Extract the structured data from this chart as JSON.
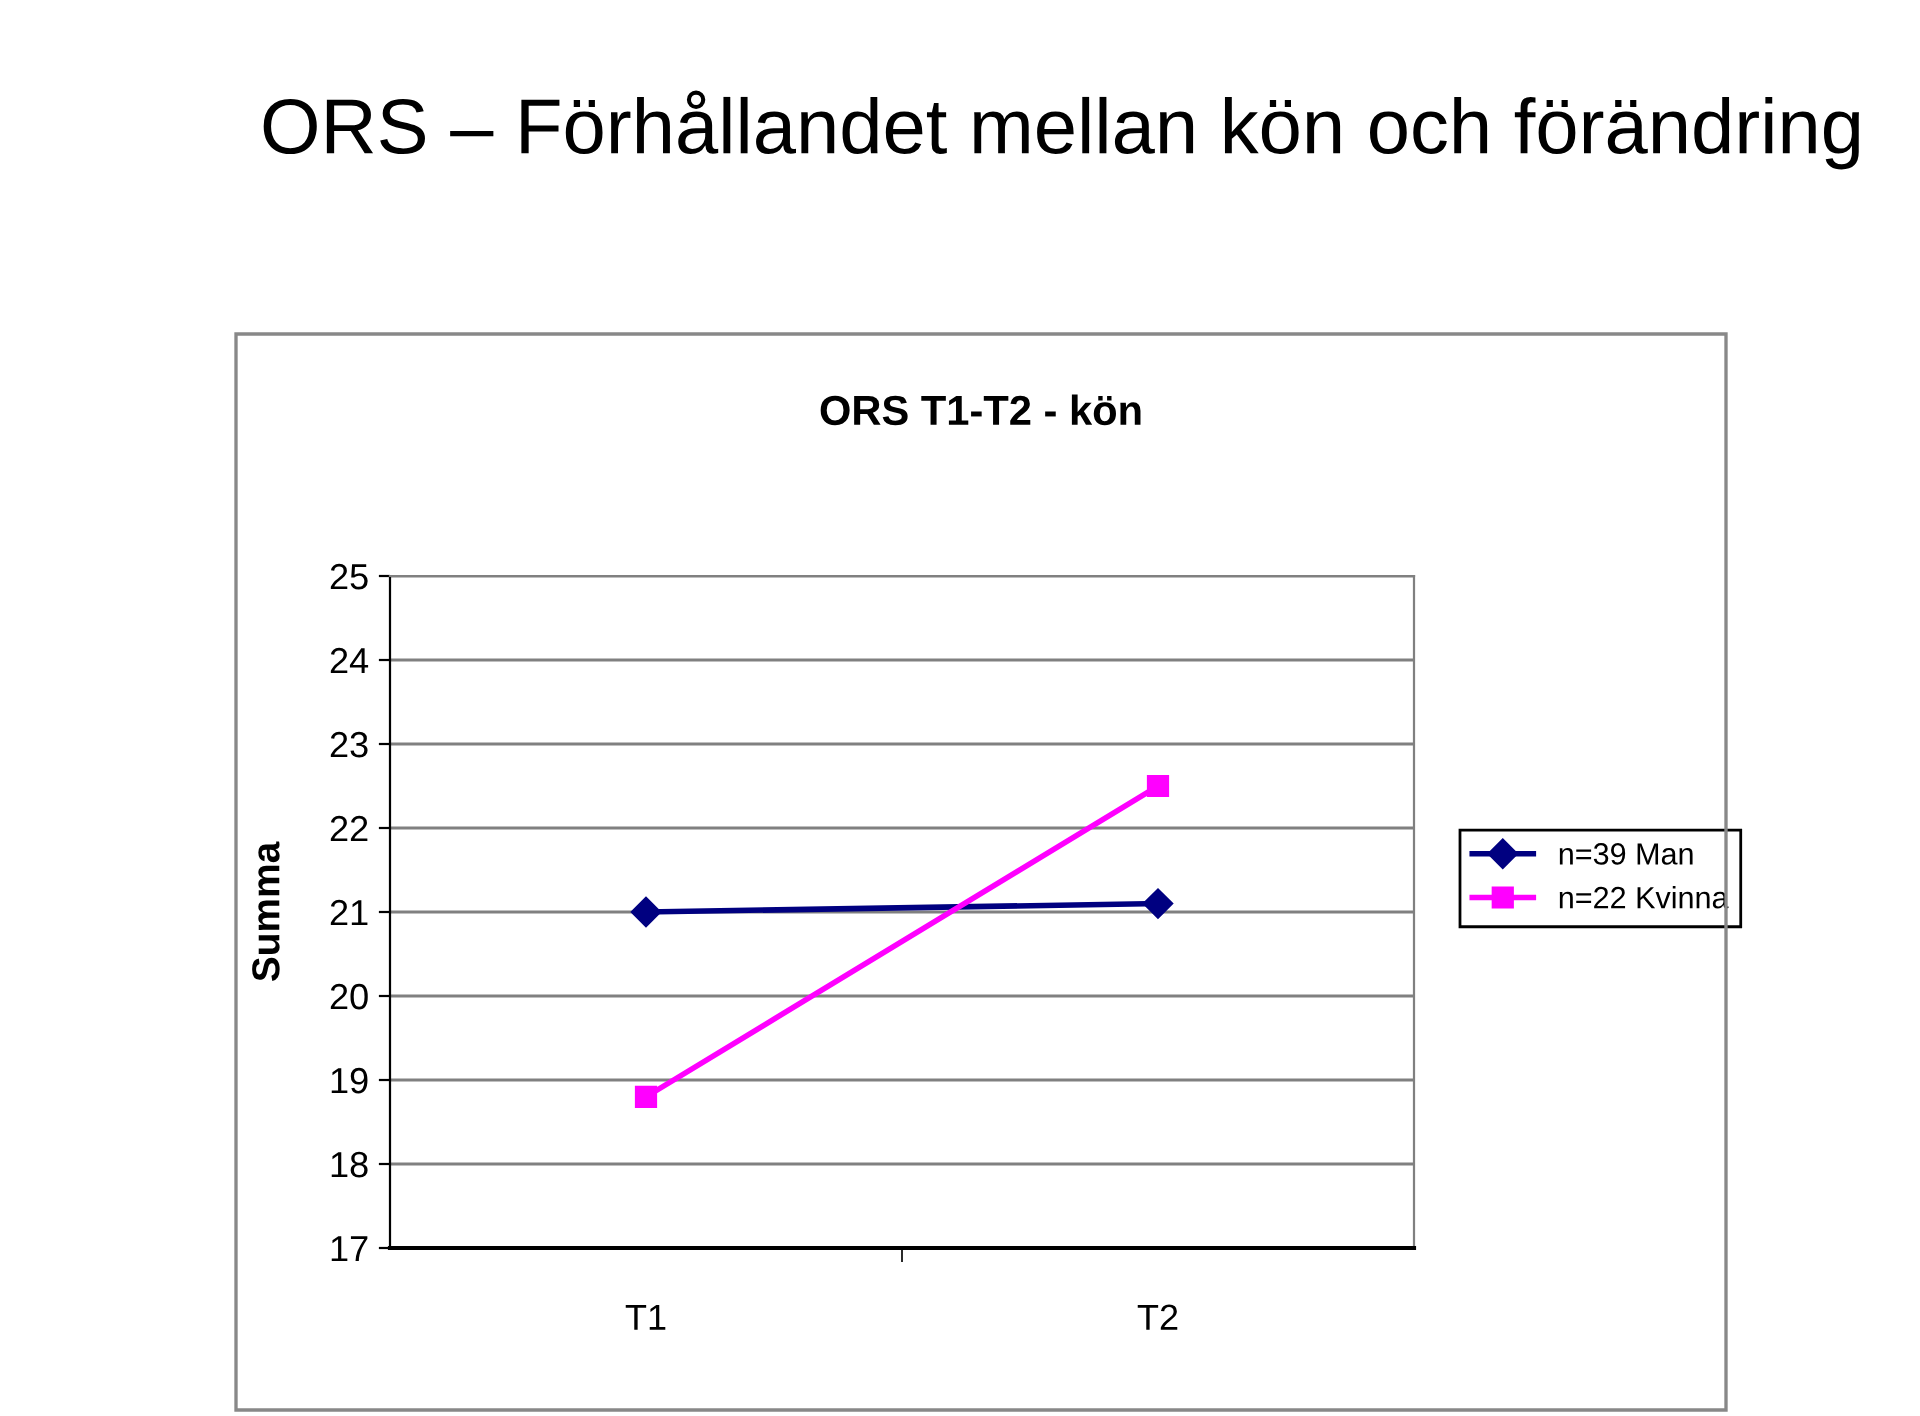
{
  "chart_data": {
    "type": "line",
    "title": "ORS T1-T2 - kön",
    "ylabel": "Summa",
    "annotations": [
      "ORS – Förhållandet mellan kön och förändring"
    ],
    "categories": [
      "T1",
      "T2"
    ],
    "series": [
      {
        "name": "n=39 Man",
        "color": "#000080",
        "values": [
          21.0,
          21.1
        ],
        "marker": "diamond"
      },
      {
        "name": "n=22 Kvinna",
        "color": "#ff00ff",
        "values": [
          18.8,
          22.5
        ],
        "marker": "square"
      }
    ],
    "ylim": [
      17,
      25
    ],
    "yticks": [
      17,
      18,
      19,
      20,
      21,
      22,
      23,
      24,
      25
    ],
    "grid": "y",
    "legend": "right",
    "line_style": "solid"
  }
}
